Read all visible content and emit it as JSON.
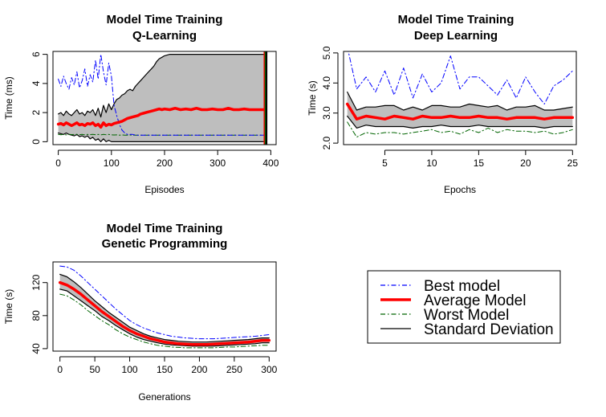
{
  "legend": [
    {
      "label": "Best model",
      "color": "#0000ff",
      "dash": "dashdot",
      "width": "thin"
    },
    {
      "label": "Average Model",
      "color": "#ff0000",
      "dash": "solid",
      "width": "thick"
    },
    {
      "label": "Worst Model",
      "color": "#006400",
      "dash": "dashdot",
      "width": "thin"
    },
    {
      "label": "Standard Deviation",
      "color": "#000000",
      "dash": "solid",
      "width": "thin"
    }
  ],
  "chart_data": [
    {
      "id": "qlearning",
      "type": "line",
      "title": [
        "Model Time Training",
        "Q-Learning"
      ],
      "xlabel": "Episodes",
      "ylabel": "Time (ms)",
      "xlim": [
        -10,
        410
      ],
      "ylim": [
        -0.2,
        6.2
      ],
      "xticks": [
        0,
        100,
        200,
        300,
        400
      ],
      "yticks": [
        0,
        2,
        4,
        6
      ],
      "ytick_rotated": true,
      "band_fill": "#bebebe",
      "x": [
        0,
        5,
        10,
        15,
        20,
        25,
        30,
        35,
        40,
        45,
        50,
        55,
        60,
        65,
        70,
        75,
        80,
        85,
        90,
        95,
        100,
        105,
        110,
        115,
        120,
        125,
        130,
        135,
        140,
        145,
        150,
        155,
        160,
        165,
        170,
        175,
        180,
        185,
        190,
        195,
        200,
        210,
        220,
        230,
        240,
        250,
        260,
        270,
        280,
        290,
        300,
        310,
        320,
        330,
        340,
        350,
        360,
        370,
        380,
        385,
        388
      ],
      "series": [
        {
          "name": "Average Model",
          "values": [
            1.2,
            1.25,
            1.15,
            1.3,
            1.2,
            1.1,
            1.2,
            1.3,
            1.15,
            1.2,
            1.1,
            1.25,
            1.2,
            1.3,
            1.1,
            1.2,
            1.0,
            1.3,
            1.1,
            1.2,
            1.15,
            1.25,
            1.3,
            1.35,
            1.4,
            1.5,
            1.6,
            1.65,
            1.7,
            1.75,
            1.8,
            1.9,
            1.95,
            2.0,
            2.05,
            2.1,
            2.15,
            2.2,
            2.25,
            2.2,
            2.25,
            2.2,
            2.3,
            2.2,
            2.25,
            2.2,
            2.3,
            2.2,
            2.2,
            2.25,
            2.2,
            2.2,
            2.3,
            2.2,
            2.2,
            2.25,
            2.2,
            2.2,
            2.2,
            2.2,
            2.2
          ]
        },
        {
          "name": "Best model",
          "values": [
            4.3,
            3.8,
            4.5,
            4.0,
            3.6,
            4.4,
            3.9,
            4.8,
            3.7,
            4.2,
            5.0,
            3.8,
            4.6,
            4.1,
            5.6,
            4.3,
            6.0,
            4.8,
            3.9,
            5.4,
            4.5,
            2.5,
            1.8,
            1.2,
            0.8,
            0.6,
            0.5,
            0.5,
            0.5,
            0.45,
            0.45,
            0.45,
            0.45,
            0.45,
            0.45,
            0.45,
            0.45,
            0.45,
            0.45,
            0.45,
            0.45,
            0.45,
            0.45,
            0.45,
            0.45,
            0.45,
            0.45,
            0.45,
            0.45,
            0.45,
            0.45,
            0.45,
            0.45,
            0.45,
            0.45,
            0.45,
            0.45,
            0.45,
            0.45,
            0.45,
            0.45
          ]
        },
        {
          "name": "Worst Model",
          "values": [
            0.5,
            0.48,
            0.5,
            0.47,
            0.5,
            0.49,
            0.5,
            0.5,
            0.48,
            0.5,
            0.47,
            0.5,
            0.49,
            0.5,
            0.48,
            0.5,
            0.47,
            0.5,
            0.48,
            0.5,
            0.47,
            0.46,
            0.47,
            0.45,
            0.46,
            0.45,
            0.45,
            0.46,
            0.45,
            0.45,
            0.45,
            0.45,
            0.45,
            0.45,
            0.45,
            0.45,
            0.45,
            0.45,
            0.45,
            0.45,
            0.45,
            0.45,
            0.45,
            0.45,
            0.45,
            0.45,
            0.45,
            0.45,
            0.45,
            0.45,
            0.45,
            0.45,
            0.45,
            0.45,
            0.45,
            0.45,
            0.45,
            0.45,
            0.45,
            0.45,
            0.45
          ]
        },
        {
          "name": "SD upper",
          "values": [
            1.9,
            2.0,
            1.8,
            2.1,
            1.9,
            1.8,
            2.0,
            2.2,
            1.9,
            2.0,
            1.8,
            2.1,
            2.0,
            2.2,
            1.8,
            2.3,
            1.7,
            2.5,
            2.0,
            2.6,
            2.2,
            2.6,
            2.9,
            3.0,
            3.2,
            3.3,
            3.5,
            3.6,
            3.5,
            3.8,
            4.0,
            4.2,
            4.4,
            4.6,
            4.8,
            5.0,
            5.2,
            5.5,
            5.7,
            5.8,
            5.9,
            6.0,
            6.0,
            6.0,
            6.0,
            6.0,
            6.0,
            6.0,
            6.0,
            6.0,
            6.0,
            6.0,
            6.0,
            6.0,
            6.0,
            6.0,
            6.0,
            6.0,
            6.0,
            6.0,
            6.0
          ]
        },
        {
          "name": "SD lower",
          "values": [
            0.6,
            0.55,
            0.5,
            0.6,
            0.5,
            0.45,
            0.4,
            0.5,
            0.35,
            0.4,
            0.3,
            0.4,
            0.2,
            0.3,
            0.1,
            0.2,
            0.0,
            0.2,
            0.0,
            0.1,
            0.0,
            0.0,
            0.0,
            0.0,
            0.0,
            0.0,
            0.0,
            0.0,
            0.0,
            0.0,
            0.0,
            0.0,
            0.0,
            0.0,
            0.0,
            0.0,
            0.0,
            0.0,
            0.0,
            0.0,
            0.0,
            0.0,
            0.0,
            0.0,
            0.0,
            0.0,
            0.0,
            0.0,
            0.0,
            0.0,
            0.0,
            0.0,
            0.0,
            0.0,
            0.0,
            0.0,
            0.0,
            0.0,
            0.0,
            0.0,
            0.0
          ]
        }
      ],
      "end_markers": [
        {
          "x": 388,
          "color": "#ff0000"
        },
        {
          "x": 390,
          "color": "#006400"
        },
        {
          "x": 392,
          "color": "#000000"
        }
      ]
    },
    {
      "id": "deeplearning",
      "type": "line",
      "title": [
        "Model Time Training",
        "Deep Learning"
      ],
      "xlabel": "Epochs",
      "ylabel": "Time (s)",
      "xlim": [
        0.6,
        25.4
      ],
      "ylim": [
        1.95,
        5.05
      ],
      "xticks": [
        5,
        10,
        15,
        20,
        25
      ],
      "yticks": [
        2.0,
        3.0,
        4.0,
        5.0
      ],
      "ytick_labels": [
        "2.0",
        "3.0",
        "4.0",
        "5.0"
      ],
      "ytick_rotated": true,
      "band_fill": "#bebebe",
      "x": [
        1,
        2,
        3,
        4,
        5,
        6,
        7,
        8,
        9,
        10,
        11,
        12,
        13,
        14,
        15,
        16,
        17,
        18,
        19,
        20,
        21,
        22,
        23,
        24,
        25
      ],
      "series": [
        {
          "name": "Average Model",
          "values": [
            3.3,
            2.8,
            2.9,
            2.85,
            2.8,
            2.9,
            2.85,
            2.8,
            2.9,
            2.85,
            2.85,
            2.9,
            2.85,
            2.85,
            2.9,
            2.85,
            2.85,
            2.8,
            2.85,
            2.85,
            2.85,
            2.8,
            2.85,
            2.85,
            2.85
          ]
        },
        {
          "name": "Best model",
          "values": [
            5.2,
            3.8,
            4.2,
            3.7,
            4.4,
            3.6,
            4.5,
            3.5,
            4.3,
            3.7,
            4.0,
            4.9,
            3.8,
            4.2,
            4.2,
            3.9,
            3.6,
            4.1,
            3.5,
            4.2,
            3.7,
            3.3,
            3.9,
            4.1,
            4.4
          ]
        },
        {
          "name": "Worst Model",
          "values": [
            2.7,
            2.2,
            2.35,
            2.3,
            2.35,
            2.35,
            2.3,
            2.35,
            2.4,
            2.45,
            2.35,
            2.4,
            2.3,
            2.45,
            2.35,
            2.5,
            2.35,
            2.45,
            2.4,
            2.4,
            2.35,
            2.4,
            2.3,
            2.35,
            2.45
          ]
        },
        {
          "name": "SD upper",
          "values": [
            3.7,
            3.1,
            3.2,
            3.2,
            3.25,
            3.25,
            3.1,
            3.2,
            3.1,
            3.25,
            3.25,
            3.2,
            3.2,
            3.3,
            3.25,
            3.2,
            3.25,
            3.1,
            3.2,
            3.2,
            3.25,
            3.1,
            3.1,
            3.15,
            3.2
          ]
        },
        {
          "name": "SD lower",
          "values": [
            2.9,
            2.5,
            2.6,
            2.55,
            2.55,
            2.55,
            2.55,
            2.5,
            2.55,
            2.55,
            2.6,
            2.55,
            2.55,
            2.55,
            2.6,
            2.55,
            2.55,
            2.55,
            2.55,
            2.55,
            2.55,
            2.5,
            2.55,
            2.55,
            2.55
          ]
        }
      ]
    },
    {
      "id": "genetic",
      "type": "line",
      "title": [
        "Model Time Training",
        "Genetic Programming"
      ],
      "xlabel": "Generations",
      "ylabel": "Time (s)",
      "xlim": [
        -10,
        310
      ],
      "ylim": [
        37,
        145
      ],
      "xticks": [
        0,
        50,
        100,
        150,
        200,
        250,
        300
      ],
      "yticks": [
        40,
        80,
        120
      ],
      "ytick_rotated": true,
      "band_fill": "#bebebe",
      "x": [
        0,
        10,
        20,
        30,
        40,
        50,
        60,
        70,
        80,
        90,
        100,
        110,
        120,
        130,
        140,
        150,
        160,
        170,
        180,
        190,
        200,
        210,
        220,
        230,
        240,
        250,
        260,
        270,
        280,
        290,
        300
      ],
      "series": [
        {
          "name": "Average Model",
          "values": [
            120,
            117,
            112,
            106,
            99,
            92,
            85,
            79,
            73,
            67,
            62,
            58,
            55,
            52,
            50,
            48,
            47,
            46,
            45.5,
            45,
            45,
            45,
            45.5,
            46,
            46.5,
            47,
            47.5,
            48,
            49,
            50,
            50
          ]
        },
        {
          "name": "Best model",
          "values": [
            140,
            139,
            135,
            128,
            120,
            112,
            104,
            96,
            88,
            81,
            74,
            69,
            65,
            62,
            59,
            57,
            55,
            54,
            53,
            52.5,
            52,
            52,
            52,
            52.5,
            53,
            53.5,
            54,
            54.5,
            55,
            56,
            57
          ]
        },
        {
          "name": "Worst Model",
          "values": [
            106,
            104,
            99,
            93,
            86,
            80,
            74,
            69,
            63,
            58,
            54,
            51,
            48,
            46,
            44,
            43,
            42,
            41.5,
            41,
            41,
            41,
            41,
            41,
            41.5,
            42,
            42,
            42.5,
            43,
            43.5,
            44,
            44
          ]
        },
        {
          "name": "SD upper",
          "values": [
            130,
            127,
            121,
            114,
            106,
            98,
            91,
            84,
            78,
            72,
            66,
            62,
            58,
            55,
            53,
            51,
            50,
            49,
            48.5,
            48,
            48,
            48,
            48.5,
            49,
            49.5,
            50,
            50.5,
            51,
            52,
            53,
            53
          ]
        },
        {
          "name": "SD lower",
          "values": [
            112,
            110,
            104,
            98,
            92,
            86,
            79,
            74,
            68,
            63,
            58,
            54,
            51,
            49,
            47,
            45.5,
            44.5,
            44,
            43.5,
            43,
            43,
            43,
            43,
            43.5,
            44,
            44.5,
            45,
            45.5,
            46,
            47,
            47
          ]
        }
      ]
    }
  ]
}
